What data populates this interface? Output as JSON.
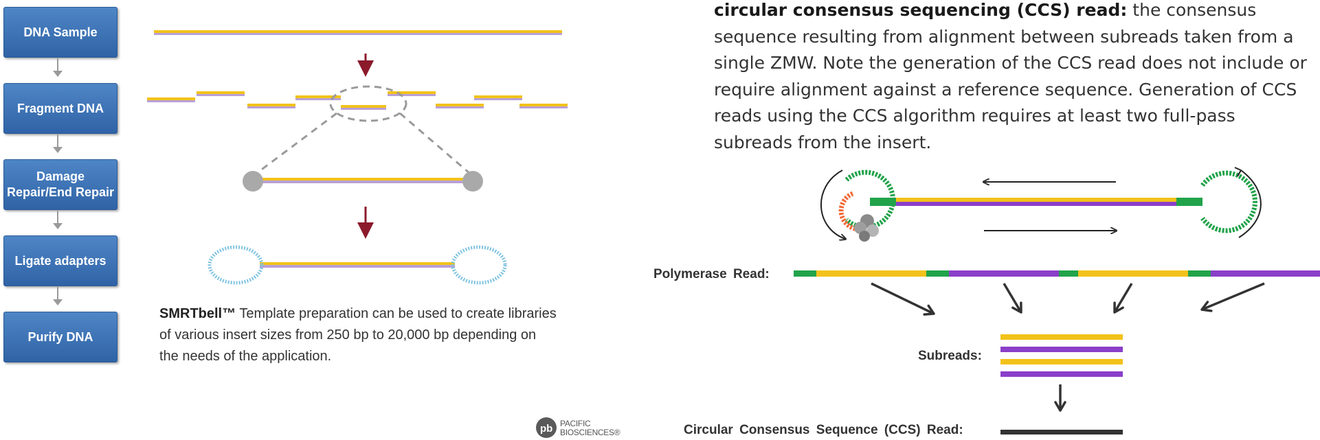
{
  "workflow": {
    "steps": [
      {
        "label": "DNA Sample"
      },
      {
        "label": "Fragment DNA"
      },
      {
        "label": "Damage Repair/End Repair"
      },
      {
        "label": "Ligate adapters"
      },
      {
        "label": "Purify DNA"
      }
    ]
  },
  "smrtbell": {
    "term": "SMRTbell™",
    "text": " Template preparation can be used to create libraries of various insert sizes from 250 bp to 20,000 bp depending on the needs of the application."
  },
  "definition": {
    "term": "circular consensus sequencing (CCS) read:",
    "text": " the consensus sequence resulting from alignment between subreads taken from a single ZMW. Note the generation of the CCS read does not include or require alignment against a reference sequence. Generation of CCS reads using the CCS algorithm requires at least two full-pass subreads from the insert."
  },
  "labels": {
    "polymerase_read": "Polymerase Read:",
    "subreads": "Subreads:",
    "ccs_read": "Circular Consensus Sequence (CCS) Read:"
  },
  "logo": {
    "line1": "PACIFIC",
    "line2": "BIOSCIENCES®"
  },
  "colors": {
    "step_box": "#3b72b8",
    "insert_yellow": "#f2c21a",
    "insert_purple": "#8a3fc9",
    "adapter_green": "#21a34a",
    "adapter_blue": "#7fc3e0",
    "arrow_red": "#8b1a2b",
    "ccs_read": "#333333"
  },
  "polymerase_read_segments": [
    "adapter",
    "insert",
    "adapter",
    "insert-reverse",
    "adapter",
    "insert",
    "adapter",
    "insert-reverse"
  ],
  "subread_strands": [
    "insert",
    "insert-reverse",
    "insert",
    "insert-reverse"
  ]
}
